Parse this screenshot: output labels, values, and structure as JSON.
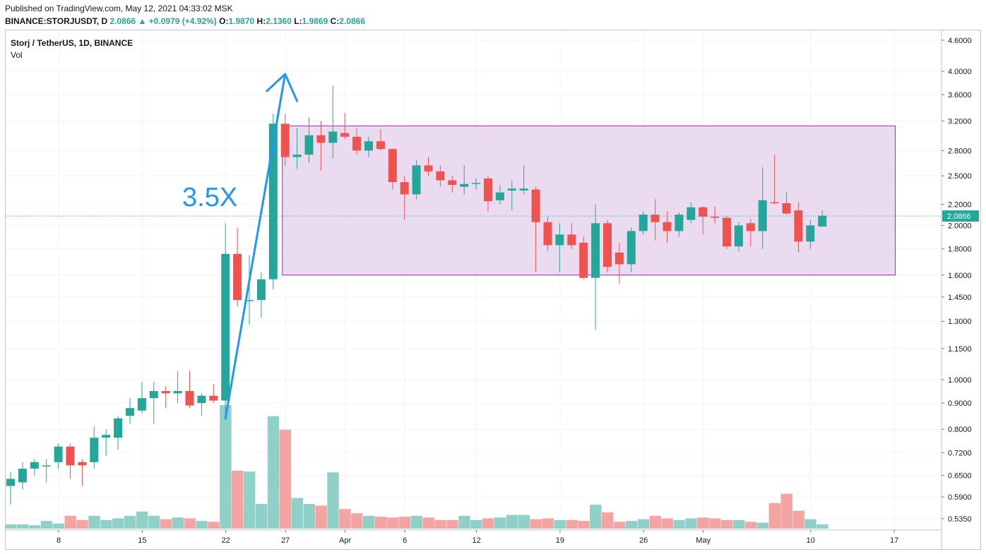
{
  "header": {
    "published": "Published on TradingView.com, May 12, 2021 04:33:02 MSK",
    "symbol": "BINANCE:STORJUSDT, D",
    "last": "2.0866",
    "change": "▲ +0.0979 (+4.92%)",
    "o_label": "O:",
    "o_value": "1.9870",
    "h_label": "H:",
    "h_value": "2.1360",
    "l_label": "L:",
    "l_value": "1.9869",
    "c_label": "C:",
    "c_value": "2.0866"
  },
  "legend": {
    "series": "Storj / TetherUS, 1D, BINANCE",
    "volume": "Vol"
  },
  "annotation": {
    "text": "3.5X"
  },
  "colors": {
    "up": "#26a69a",
    "down": "#ef5350",
    "up_vol": "#8fd0c9",
    "down_vol": "#f4a4a2",
    "range_fill": "#e8d5ee",
    "range_stroke": "#9c27b0",
    "arrow": "#2196f3",
    "grid": "#f0f3fa"
  },
  "chart_data": {
    "type": "candlestick",
    "scale": "log",
    "title": "Storj / TetherUS, 1D, BINANCE",
    "ylim": [
      0.51,
      4.8
    ],
    "y_ticks": [
      "4.6000",
      "4.0000",
      "3.6000",
      "3.2000",
      "2.8000",
      "2.5000",
      "2.2000",
      "2.0000",
      "1.8000",
      "1.6000",
      "1.4500",
      "1.3000",
      "1.1500",
      "1.0000",
      "0.9000",
      "0.8000",
      "0.7200",
      "0.6500",
      "0.5900",
      "0.5350"
    ],
    "x_ticks": [
      "8",
      "15",
      "22",
      "27",
      "Apr",
      "6",
      "12",
      "19",
      "26",
      "May",
      "10",
      "17"
    ],
    "last_price_label": "2.0866",
    "last_price": 2.0866,
    "first_date": "2021-03-04",
    "candles": [
      {
        "o": 0.62,
        "h": 0.66,
        "l": 0.57,
        "c": 0.64
      },
      {
        "o": 0.63,
        "h": 0.69,
        "l": 0.61,
        "c": 0.67
      },
      {
        "o": 0.67,
        "h": 0.7,
        "l": 0.65,
        "c": 0.69
      },
      {
        "o": 0.68,
        "h": 0.7,
        "l": 0.63,
        "c": 0.68
      },
      {
        "o": 0.69,
        "h": 0.75,
        "l": 0.67,
        "c": 0.74
      },
      {
        "o": 0.74,
        "h": 0.75,
        "l": 0.64,
        "c": 0.68
      },
      {
        "o": 0.69,
        "h": 0.7,
        "l": 0.62,
        "c": 0.68
      },
      {
        "o": 0.69,
        "h": 0.81,
        "l": 0.67,
        "c": 0.77
      },
      {
        "o": 0.77,
        "h": 0.8,
        "l": 0.71,
        "c": 0.78
      },
      {
        "o": 0.77,
        "h": 0.85,
        "l": 0.73,
        "c": 0.84
      },
      {
        "o": 0.85,
        "h": 0.92,
        "l": 0.82,
        "c": 0.88
      },
      {
        "o": 0.87,
        "h": 0.99,
        "l": 0.86,
        "c": 0.92
      },
      {
        "o": 0.92,
        "h": 0.99,
        "l": 0.82,
        "c": 0.95
      },
      {
        "o": 0.95,
        "h": 0.97,
        "l": 0.88,
        "c": 0.94
      },
      {
        "o": 0.94,
        "h": 1.04,
        "l": 0.9,
        "c": 0.95
      },
      {
        "o": 0.95,
        "h": 1.04,
        "l": 0.88,
        "c": 0.89
      },
      {
        "o": 0.9,
        "h": 0.94,
        "l": 0.85,
        "c": 0.93
      },
      {
        "o": 0.93,
        "h": 0.98,
        "l": 0.9,
        "c": 0.91
      },
      {
        "o": 0.91,
        "h": 2.02,
        "l": 0.84,
        "c": 1.76
      },
      {
        "o": 1.76,
        "h": 1.98,
        "l": 1.39,
        "c": 1.43
      },
      {
        "o": 1.43,
        "h": 1.75,
        "l": 1.28,
        "c": 1.43
      },
      {
        "o": 1.43,
        "h": 1.62,
        "l": 1.32,
        "c": 1.57
      },
      {
        "o": 1.57,
        "h": 3.3,
        "l": 1.5,
        "c": 3.16
      },
      {
        "o": 3.16,
        "h": 3.3,
        "l": 2.62,
        "c": 2.72
      },
      {
        "o": 2.72,
        "h": 3.1,
        "l": 2.58,
        "c": 2.75
      },
      {
        "o": 2.75,
        "h": 3.25,
        "l": 2.65,
        "c": 3.0
      },
      {
        "o": 3.0,
        "h": 3.2,
        "l": 2.56,
        "c": 2.9
      },
      {
        "o": 2.9,
        "h": 3.75,
        "l": 2.7,
        "c": 3.05
      },
      {
        "o": 3.03,
        "h": 3.32,
        "l": 2.95,
        "c": 2.98
      },
      {
        "o": 2.98,
        "h": 3.1,
        "l": 2.75,
        "c": 2.8
      },
      {
        "o": 2.8,
        "h": 2.98,
        "l": 2.72,
        "c": 2.92
      },
      {
        "o": 2.92,
        "h": 3.08,
        "l": 2.8,
        "c": 2.82
      },
      {
        "o": 2.82,
        "h": 2.82,
        "l": 2.35,
        "c": 2.43
      },
      {
        "o": 2.43,
        "h": 2.5,
        "l": 2.05,
        "c": 2.3
      },
      {
        "o": 2.3,
        "h": 2.68,
        "l": 2.25,
        "c": 2.62
      },
      {
        "o": 2.62,
        "h": 2.72,
        "l": 2.5,
        "c": 2.55
      },
      {
        "o": 2.55,
        "h": 2.62,
        "l": 2.38,
        "c": 2.45
      },
      {
        "o": 2.45,
        "h": 2.5,
        "l": 2.32,
        "c": 2.4
      },
      {
        "o": 2.38,
        "h": 2.62,
        "l": 2.3,
        "c": 2.41
      },
      {
        "o": 2.41,
        "h": 2.47,
        "l": 2.35,
        "c": 2.42
      },
      {
        "o": 2.47,
        "h": 2.5,
        "l": 2.13,
        "c": 2.23
      },
      {
        "o": 2.24,
        "h": 2.4,
        "l": 2.2,
        "c": 2.32
      },
      {
        "o": 2.34,
        "h": 2.45,
        "l": 2.14,
        "c": 2.36
      },
      {
        "o": 2.34,
        "h": 2.62,
        "l": 2.3,
        "c": 2.36
      },
      {
        "o": 2.35,
        "h": 2.38,
        "l": 1.62,
        "c": 2.03
      },
      {
        "o": 2.03,
        "h": 2.08,
        "l": 1.78,
        "c": 1.83
      },
      {
        "o": 1.83,
        "h": 2.02,
        "l": 1.62,
        "c": 1.92
      },
      {
        "o": 1.92,
        "h": 2.02,
        "l": 1.8,
        "c": 1.83
      },
      {
        "o": 1.85,
        "h": 1.9,
        "l": 1.57,
        "c": 1.58
      },
      {
        "o": 1.58,
        "h": 2.2,
        "l": 1.25,
        "c": 2.02
      },
      {
        "o": 2.02,
        "h": 2.05,
        "l": 1.62,
        "c": 1.66
      },
      {
        "o": 1.77,
        "h": 1.85,
        "l": 1.54,
        "c": 1.68
      },
      {
        "o": 1.68,
        "h": 1.98,
        "l": 1.62,
        "c": 1.95
      },
      {
        "o": 1.95,
        "h": 2.13,
        "l": 1.92,
        "c": 2.1
      },
      {
        "o": 2.1,
        "h": 2.25,
        "l": 1.87,
        "c": 2.03
      },
      {
        "o": 2.03,
        "h": 2.13,
        "l": 1.85,
        "c": 1.95
      },
      {
        "o": 1.95,
        "h": 2.12,
        "l": 1.9,
        "c": 2.1
      },
      {
        "o": 2.05,
        "h": 2.22,
        "l": 2.02,
        "c": 2.17
      },
      {
        "o": 2.17,
        "h": 2.18,
        "l": 1.92,
        "c": 2.08
      },
      {
        "o": 2.08,
        "h": 2.18,
        "l": 2.02,
        "c": 2.07
      },
      {
        "o": 2.07,
        "h": 2.09,
        "l": 1.8,
        "c": 1.82
      },
      {
        "o": 1.82,
        "h": 2.03,
        "l": 1.78,
        "c": 2.0
      },
      {
        "o": 2.02,
        "h": 2.06,
        "l": 1.82,
        "c": 1.95
      },
      {
        "o": 1.95,
        "h": 2.6,
        "l": 1.8,
        "c": 2.24
      },
      {
        "o": 2.22,
        "h": 2.75,
        "l": 2.2,
        "c": 2.21
      },
      {
        "o": 2.21,
        "h": 2.32,
        "l": 2.1,
        "c": 2.11
      },
      {
        "o": 2.14,
        "h": 2.22,
        "l": 1.77,
        "c": 1.86
      },
      {
        "o": 1.86,
        "h": 2.05,
        "l": 1.8,
        "c": 2.0
      },
      {
        "o": 1.99,
        "h": 2.14,
        "l": 1.99,
        "c": 2.09
      }
    ],
    "volume": [
      0.5,
      0.5,
      0.4,
      0.9,
      0.6,
      1.5,
      1.0,
      1.5,
      1.0,
      1.2,
      1.5,
      2.0,
      1.5,
      1.1,
      1.3,
      1.2,
      0.9,
      0.8,
      14.5,
      6.8,
      6.7,
      2.9,
      13.2,
      11.6,
      3.6,
      2.9,
      2.7,
      6.6,
      2.3,
      1.8,
      1.5,
      1.4,
      1.3,
      1.4,
      1.5,
      1.3,
      1.0,
      1.0,
      1.5,
      1.0,
      1.2,
      1.3,
      1.6,
      1.6,
      1.1,
      1.2,
      1.0,
      1.0,
      0.9,
      2.8,
      1.9,
      0.8,
      0.9,
      1.1,
      1.5,
      1.2,
      1.0,
      1.2,
      1.3,
      1.2,
      1.0,
      1.0,
      0.8,
      0.7,
      3.0,
      4.1,
      2.1,
      1.1,
      0.5
    ],
    "range_box": {
      "top": 3.13,
      "bottom": 1.6,
      "from_index": 23,
      "to_index": 74
    }
  }
}
